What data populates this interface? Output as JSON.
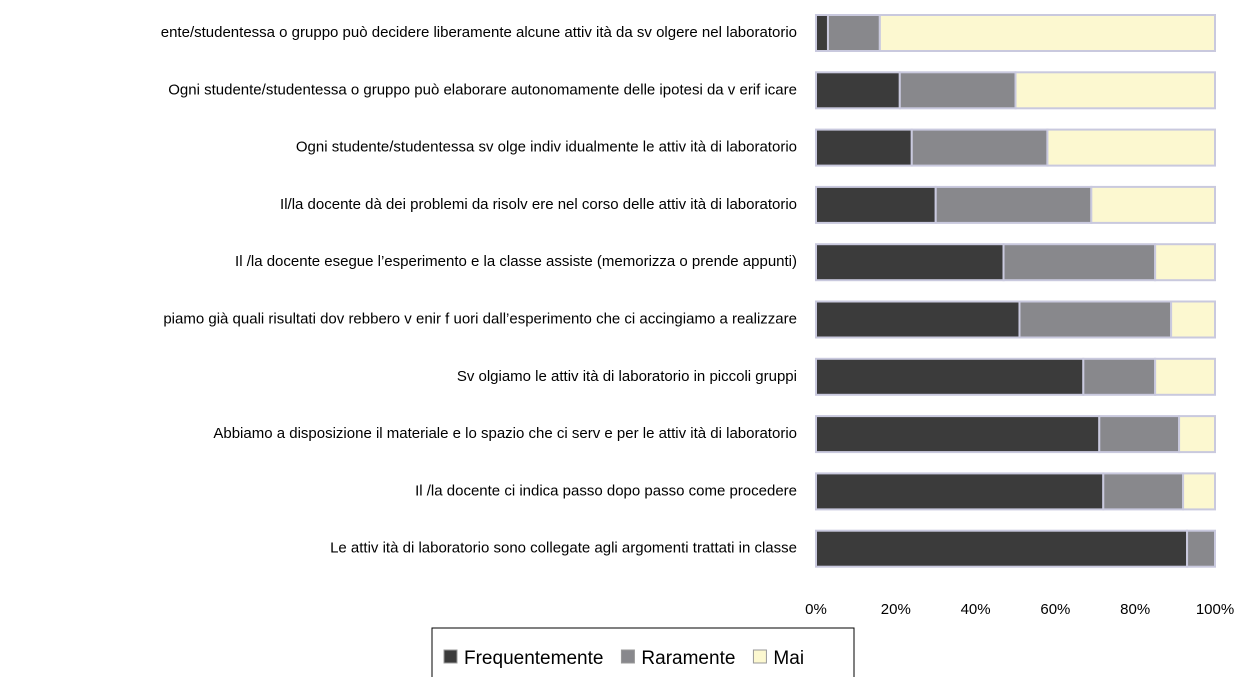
{
  "chart_data": {
    "type": "stacked_bar_horizontal",
    "categories": [
      "ente/studentessa o gruppo può decidere liberamente alcune attiv ità da sv olgere nel laboratorio",
      "Ogni studente/studentessa o gruppo può elaborare autonomamente delle ipotesi da v erif icare",
      "Ogni studente/studentessa sv olge indiv idualmente le attiv ità di laboratorio",
      "Il/la docente dà dei problemi da risolv ere nel corso delle attiv ità di laboratorio",
      "Il /la docente esegue l’esperimento e la classe assiste (memorizza o prende appunti)",
      "piamo già quali risultati dov rebbero v enir f uori dall’esperimento che ci accingiamo a realizzare",
      "Sv olgiamo le attiv ità di laboratorio in piccoli gruppi",
      "Abbiamo a disposizione il materiale e lo spazio che ci serv e per le attiv ità di laboratorio",
      "Il /la docente ci indica passo dopo passo come procedere",
      "Le attiv ità di laboratorio sono collegate agli argomenti trattati in classe"
    ],
    "series": [
      {
        "name": "Frequentemente",
        "color": "#3b3b3b",
        "values": [
          3,
          21,
          24,
          30,
          47,
          51,
          67,
          71,
          72,
          93
        ]
      },
      {
        "name": "Raramente",
        "color": "#88888c",
        "values": [
          13,
          29,
          34,
          39,
          38,
          38,
          18,
          20,
          20,
          7
        ]
      },
      {
        "name": "Mai",
        "color": "#fcf8d0",
        "values": [
          84,
          50,
          42,
          31,
          15,
          11,
          15,
          9,
          8,
          0
        ]
      }
    ],
    "xlim": [
      0,
      100
    ],
    "xticks": [
      {
        "value": 0,
        "label": "0%"
      },
      {
        "value": 20,
        "label": "20%"
      },
      {
        "value": 40,
        "label": "40%"
      },
      {
        "value": 60,
        "label": "60%"
      },
      {
        "value": 80,
        "label": "80%"
      },
      {
        "value": 100,
        "label": "100%"
      }
    ]
  }
}
